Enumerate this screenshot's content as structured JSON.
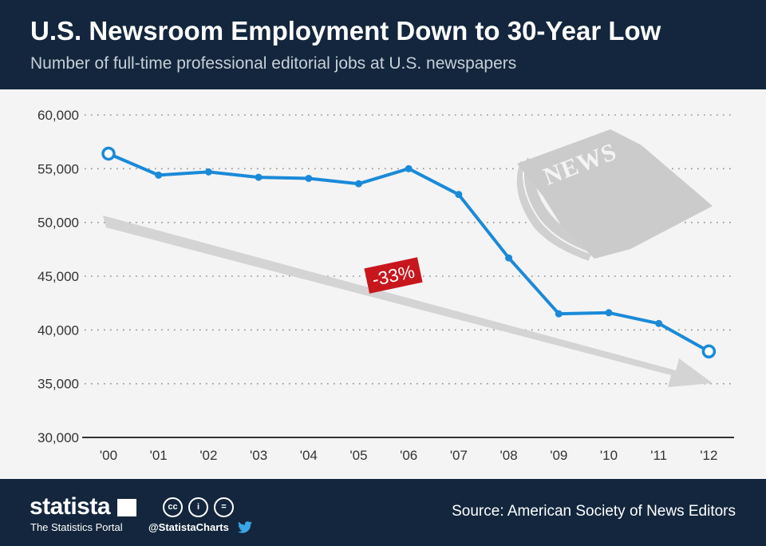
{
  "header": {
    "title": "U.S. Newsroom Employment Down to 30-Year Low",
    "subtitle": "Number of full-time professional editorial jobs at U.S. newspapers"
  },
  "chart_data": {
    "type": "line",
    "categories": [
      "'00",
      "'01",
      "'02",
      "'03",
      "'04",
      "'05",
      "'06",
      "'07",
      "'08",
      "'09",
      "'10",
      "'11",
      "'12"
    ],
    "values": [
      56400,
      54400,
      54700,
      54200,
      54100,
      53600,
      55000,
      52600,
      46700,
      41500,
      41600,
      40600,
      38000
    ],
    "ylim": [
      30000,
      60000
    ],
    "yticks": [
      30000,
      35000,
      40000,
      45000,
      50000,
      55000,
      60000
    ],
    "ytick_labels": [
      "30,000",
      "35,000",
      "40,000",
      "45,000",
      "50,000",
      "55,000",
      "60,000"
    ],
    "grid": true,
    "series_color": "#1a8ad8",
    "trend_color": "#d4d4d4",
    "annotation": {
      "text": "-33%",
      "color": "#c8161d"
    },
    "title": "",
    "xlabel": "",
    "ylabel": ""
  },
  "illustration": {
    "text": "NEWS",
    "icon": "newspaper-icon"
  },
  "footer": {
    "brand": "statista",
    "tagline": "The Statistics Portal",
    "cc_icons": [
      "cc",
      "i",
      "="
    ],
    "handle": "@StatistaCharts",
    "source": "Source: American Society of News Editors"
  }
}
